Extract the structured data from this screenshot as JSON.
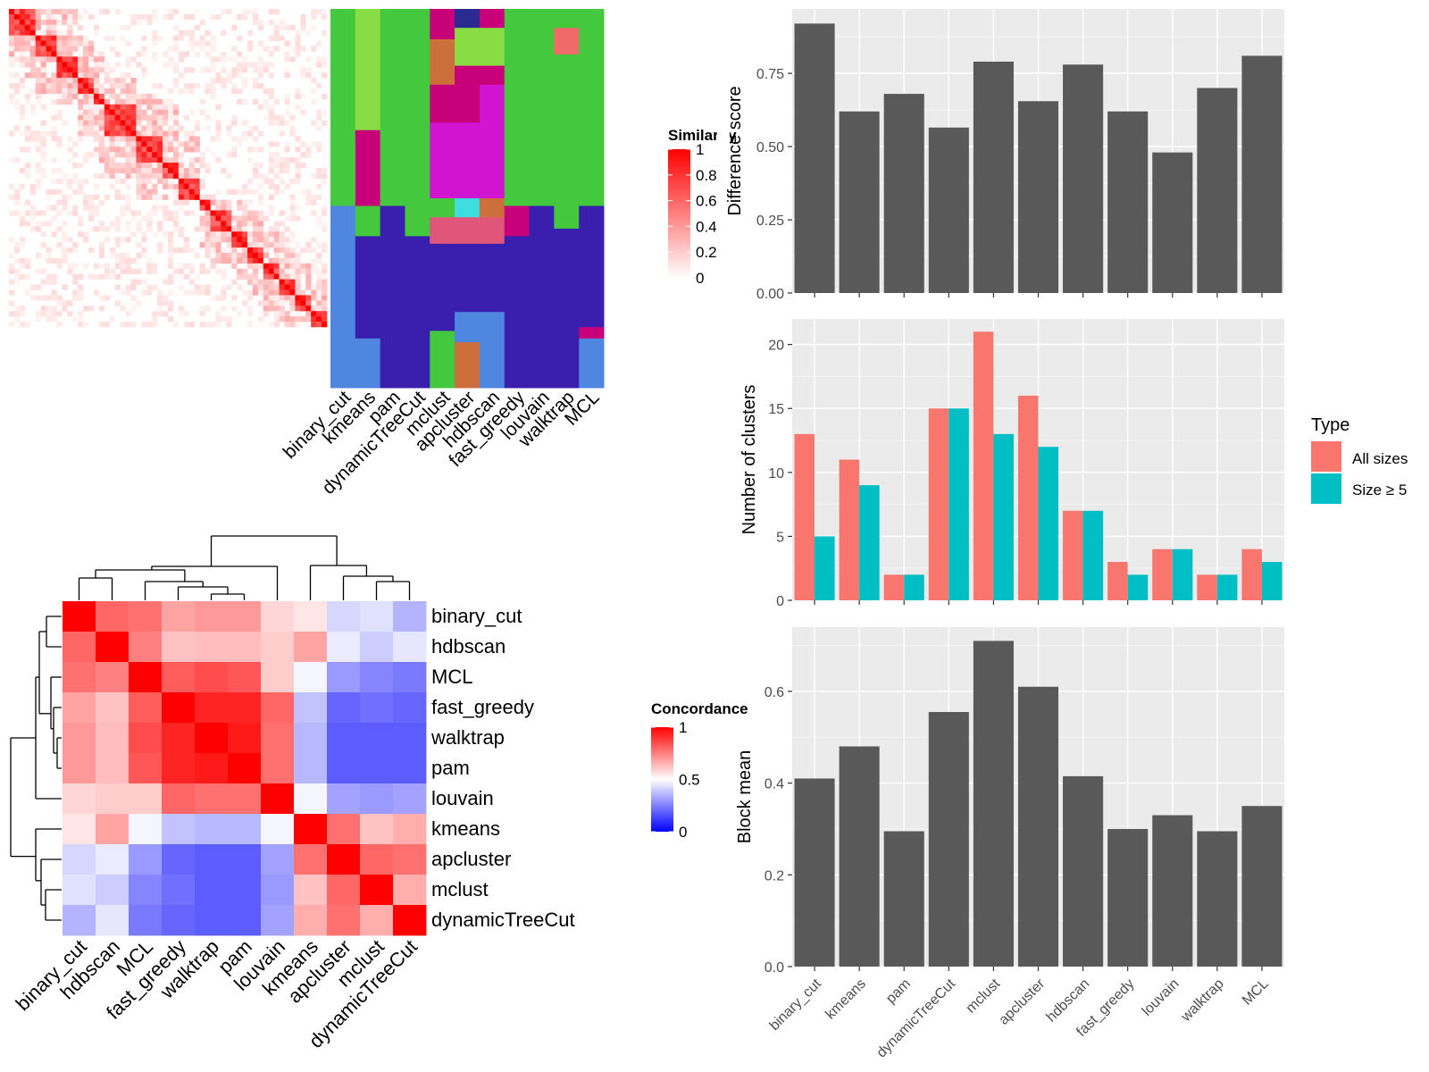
{
  "heatmap_top": {
    "legend_title": "Similarity",
    "legend_ticks": [
      "0",
      "0.2",
      "0.4",
      "0.6",
      "0.8",
      "1"
    ],
    "legend_values": [
      0,
      0.2,
      0.4,
      0.6,
      0.8,
      1
    ],
    "methods": [
      "binary_cut",
      "kmeans",
      "pam",
      "dynamicTreeCut",
      "mclust",
      "apcluster",
      "hdbscan",
      "fast_greedy",
      "louvain",
      "walktrap",
      "MCL"
    ],
    "palette": [
      "#44c93e",
      "#3a1fae",
      "#c8007a",
      "#4f86e0",
      "#e0567a",
      "#cc6f3b",
      "#d014d0",
      "#88dd44",
      "#f06a6a",
      "#3ddde0",
      "#2a2a90",
      "#c01fa0"
    ]
  },
  "concordance": {
    "legend_title": "Concordance",
    "legend_ticks": [
      "0",
      "0.5",
      "1"
    ],
    "legend_values": [
      0,
      0.5,
      1
    ],
    "labels": [
      "binary_cut",
      "hdbscan",
      "MCL",
      "fast_greedy",
      "walktrap",
      "pam",
      "louvain",
      "kmeans",
      "apcluster",
      "mclust",
      "dynamicTreeCut"
    ]
  },
  "chart_data": [
    {
      "type": "bar",
      "categories": [
        "binary_cut",
        "kmeans",
        "pam",
        "dynamicTreeCut",
        "mclust",
        "apcluster",
        "hdbscan",
        "fast_greedy",
        "louvain",
        "walktrap",
        "MCL"
      ],
      "values": [
        0.92,
        0.62,
        0.68,
        0.565,
        0.79,
        0.655,
        0.78,
        0.62,
        0.48,
        0.7,
        0.81
      ],
      "ylabel": "Difference score",
      "yticks": [
        0,
        0.25,
        0.5,
        0.75
      ],
      "ytick_labels": [
        "0.00",
        "0.25",
        "0.50",
        "0.75"
      ],
      "ylim": [
        0,
        0.97
      ],
      "grid": true
    },
    {
      "type": "bar",
      "categories": [
        "binary_cut",
        "kmeans",
        "pam",
        "dynamicTreeCut",
        "mclust",
        "apcluster",
        "hdbscan",
        "fast_greedy",
        "louvain",
        "walktrap",
        "MCL"
      ],
      "series": [
        {
          "name": "All sizes",
          "color": "#f8766d",
          "values": [
            13,
            11,
            2,
            15,
            21,
            16,
            7,
            3,
            4,
            2,
            4
          ]
        },
        {
          "name": "Size ≥ 5",
          "color": "#00bfc4",
          "values": [
            5,
            9,
            2,
            15,
            13,
            12,
            7,
            2,
            4,
            2,
            3
          ]
        }
      ],
      "ylabel": "Number of clusters",
      "yticks": [
        0,
        5,
        10,
        15,
        20
      ],
      "ylim": [
        0,
        22
      ],
      "legend_title": "Type",
      "legend_position": "right",
      "grid": true
    },
    {
      "type": "bar",
      "categories": [
        "binary_cut",
        "kmeans",
        "pam",
        "dynamicTreeCut",
        "mclust",
        "apcluster",
        "hdbscan",
        "fast_greedy",
        "louvain",
        "walktrap",
        "MCL"
      ],
      "values": [
        0.41,
        0.48,
        0.295,
        0.555,
        0.71,
        0.61,
        0.415,
        0.3,
        0.33,
        0.295,
        0.35
      ],
      "ylabel": "Block mean",
      "yticks": [
        0,
        0.2,
        0.4,
        0.6
      ],
      "ytick_labels": [
        "0.0",
        "0.2",
        "0.4",
        "0.6"
      ],
      "ylim": [
        0,
        0.74
      ],
      "grid": true
    },
    {
      "type": "heatmap",
      "rows": [
        "binary_cut",
        "hdbscan",
        "MCL",
        "fast_greedy",
        "walktrap",
        "pam",
        "louvain",
        "kmeans",
        "apcluster",
        "mclust",
        "dynamicTreeCut"
      ],
      "cols": [
        "binary_cut",
        "hdbscan",
        "MCL",
        "fast_greedy",
        "walktrap",
        "pam",
        "louvain",
        "kmeans",
        "apcluster",
        "mclust",
        "dynamicTreeCut"
      ],
      "values": [
        [
          1.0,
          0.8,
          0.78,
          0.68,
          0.7,
          0.7,
          0.58,
          0.55,
          0.42,
          0.44,
          0.35
        ],
        [
          0.8,
          1.0,
          0.75,
          0.62,
          0.63,
          0.63,
          0.6,
          0.68,
          0.46,
          0.4,
          0.45
        ],
        [
          0.78,
          0.75,
          1.0,
          0.82,
          0.85,
          0.83,
          0.6,
          0.48,
          0.3,
          0.26,
          0.24
        ],
        [
          0.68,
          0.62,
          0.82,
          1.0,
          0.93,
          0.93,
          0.8,
          0.38,
          0.2,
          0.22,
          0.2
        ],
        [
          0.7,
          0.63,
          0.85,
          0.93,
          1.0,
          0.95,
          0.78,
          0.36,
          0.18,
          0.18,
          0.18
        ],
        [
          0.7,
          0.63,
          0.83,
          0.93,
          0.95,
          1.0,
          0.78,
          0.36,
          0.18,
          0.18,
          0.18
        ],
        [
          0.58,
          0.6,
          0.6,
          0.8,
          0.78,
          0.78,
          1.0,
          0.48,
          0.32,
          0.3,
          0.32
        ],
        [
          0.55,
          0.68,
          0.48,
          0.38,
          0.36,
          0.36,
          0.48,
          1.0,
          0.78,
          0.62,
          0.66
        ],
        [
          0.42,
          0.46,
          0.3,
          0.2,
          0.18,
          0.18,
          0.32,
          0.78,
          1.0,
          0.8,
          0.78
        ],
        [
          0.44,
          0.4,
          0.26,
          0.22,
          0.18,
          0.18,
          0.3,
          0.62,
          0.8,
          1.0,
          0.66
        ],
        [
          0.35,
          0.45,
          0.24,
          0.2,
          0.18,
          0.18,
          0.32,
          0.66,
          0.78,
          0.66,
          1.0
        ]
      ]
    }
  ]
}
